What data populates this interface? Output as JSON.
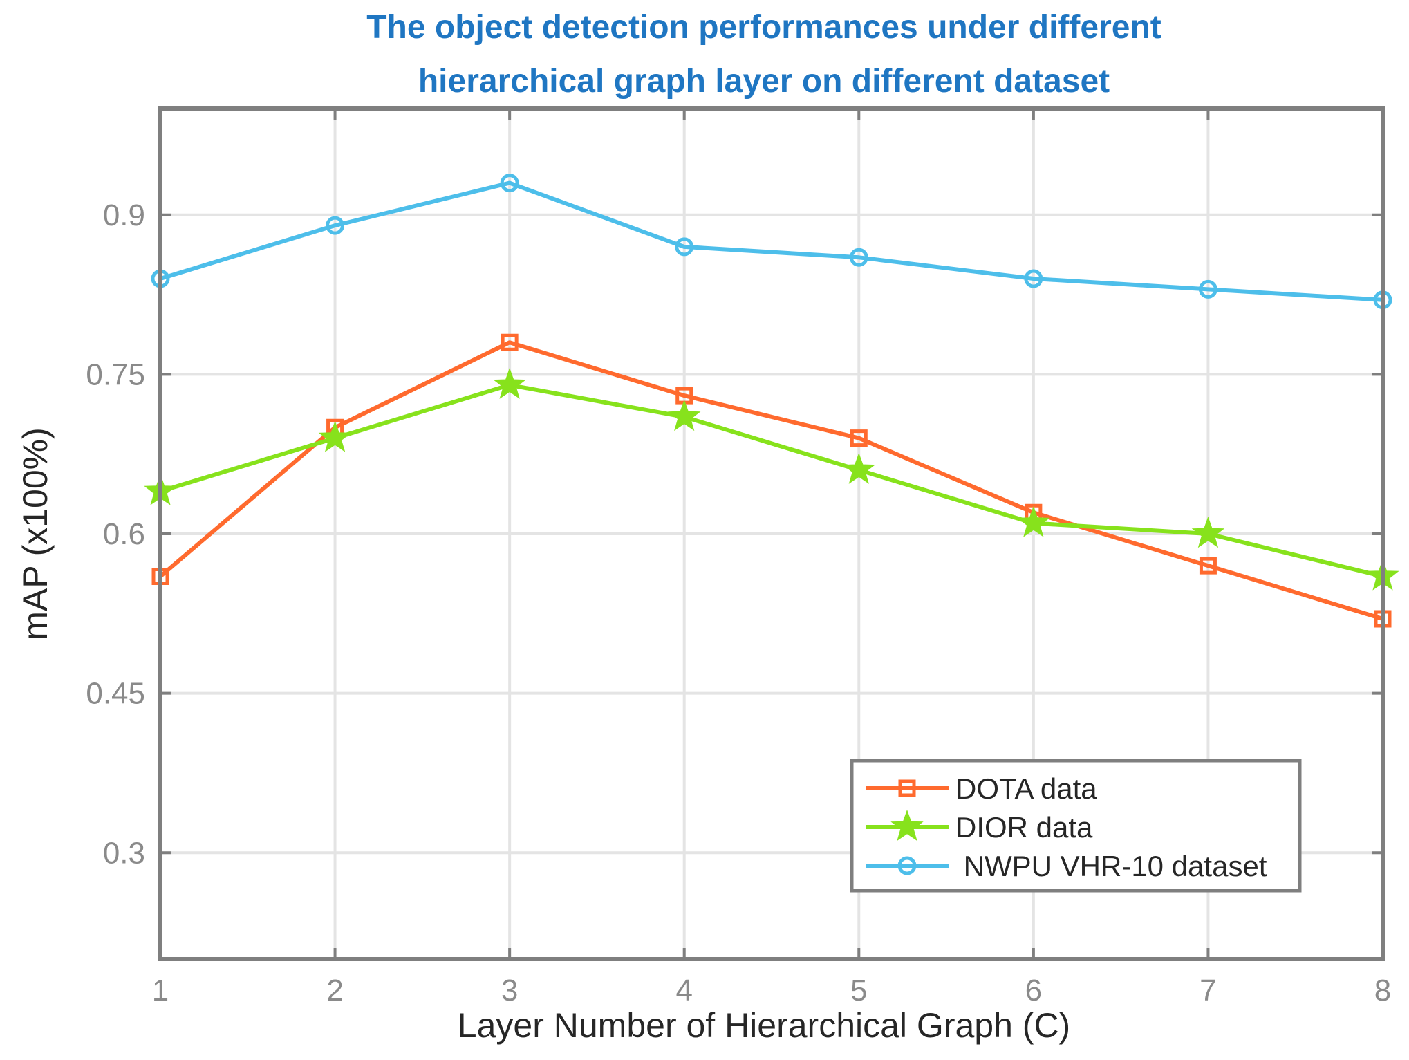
{
  "chart_data": {
    "type": "line",
    "title": [
      "The object detection performances under different",
      "hierarchical graph layer on different dataset"
    ],
    "xlabel": "Layer Number of Hierarchical Graph (C)",
    "ylabel": "mAP (x100%)",
    "x": [
      1,
      2,
      3,
      4,
      5,
      6,
      7,
      8
    ],
    "xticks": [
      "1",
      "2",
      "3",
      "4",
      "5",
      "6",
      "7",
      "8"
    ],
    "xlim": [
      1,
      8
    ],
    "ylim": [
      0.2,
      1.0
    ],
    "yticks": [
      0.3,
      0.45,
      0.6,
      0.75,
      0.9
    ],
    "ytick_labels": [
      "0.3",
      "0.45",
      "0.6",
      "0.75",
      "0.9"
    ],
    "grid": true,
    "legend_position": "bottom-right",
    "series": [
      {
        "name": "DOTA data",
        "color": "#ff6a2e",
        "marker": "square",
        "values": [
          0.56,
          0.7,
          0.78,
          0.73,
          0.69,
          0.62,
          0.57,
          0.52
        ]
      },
      {
        "name": "DIOR data",
        "color": "#87e21c",
        "marker": "star",
        "values": [
          0.64,
          0.69,
          0.74,
          0.71,
          0.66,
          0.61,
          0.6,
          0.56
        ]
      },
      {
        "name": " NWPU VHR-10 dataset",
        "color": "#4dbeea",
        "marker": "circle",
        "values": [
          0.84,
          0.89,
          0.93,
          0.87,
          0.86,
          0.84,
          0.83,
          0.82
        ]
      }
    ]
  }
}
